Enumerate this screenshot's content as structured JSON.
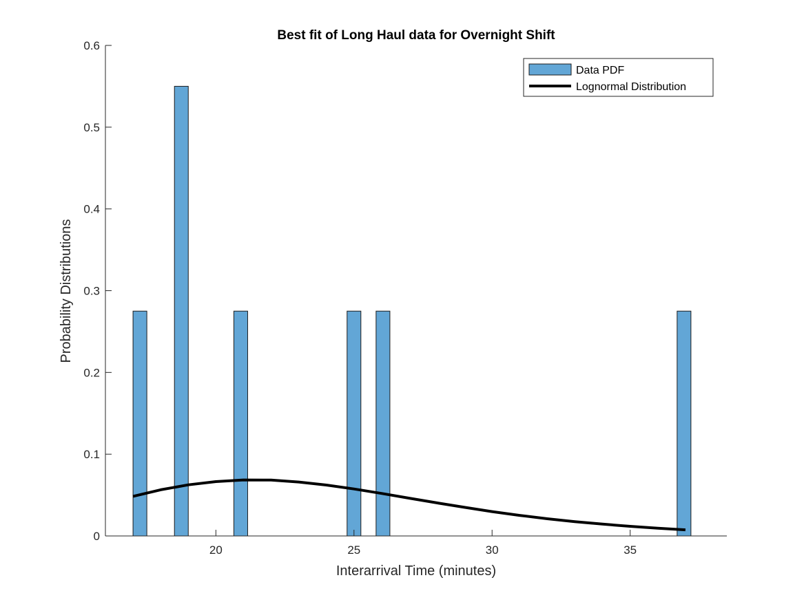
{
  "chart_data": {
    "type": "bar",
    "title": "Best fit of Long Haul data for Overnight Shift",
    "xlabel": "Interarrival Time (minutes)",
    "ylabel": "Probability Distributions",
    "xlim": [
      16.0,
      38.5
    ],
    "ylim": [
      0,
      0.6
    ],
    "xticks": [
      20,
      25,
      30,
      35
    ],
    "yticks": [
      0,
      0.1,
      0.2,
      0.3,
      0.4,
      0.5,
      0.6
    ],
    "ytick_labels": [
      "0",
      "0.1",
      "0.2",
      "0.3",
      "0.4",
      "0.5",
      "0.6"
    ],
    "grid": false,
    "legend_position": "top-right",
    "colors": {
      "bars": "#62a6d6",
      "bar_edge": "#1a1a1a",
      "curve": "#000000",
      "axis": "#262626"
    },
    "series": [
      {
        "name": "Data PDF",
        "kind": "histogram",
        "bin_width": 0.5,
        "bins": [
          {
            "x": 17.25,
            "y": 0.275
          },
          {
            "x": 18.75,
            "y": 0.55
          },
          {
            "x": 20.9,
            "y": 0.275
          },
          {
            "x": 25.0,
            "y": 0.275
          },
          {
            "x": 26.05,
            "y": 0.275
          },
          {
            "x": 36.95,
            "y": 0.275
          }
        ]
      },
      {
        "name": "Lognormal Distribution",
        "kind": "line",
        "points": [
          [
            17.0,
            0.0485
          ],
          [
            18.0,
            0.0565
          ],
          [
            19.0,
            0.0625
          ],
          [
            20.0,
            0.0665
          ],
          [
            21.0,
            0.0685
          ],
          [
            22.0,
            0.0683
          ],
          [
            23.0,
            0.066
          ],
          [
            24.0,
            0.0623
          ],
          [
            25.0,
            0.0575
          ],
          [
            26.0,
            0.052
          ],
          [
            27.0,
            0.0462
          ],
          [
            28.0,
            0.0405
          ],
          [
            29.0,
            0.035
          ],
          [
            30.0,
            0.0298
          ],
          [
            31.0,
            0.0252
          ],
          [
            32.0,
            0.021
          ],
          [
            33.0,
            0.0175
          ],
          [
            34.0,
            0.0145
          ],
          [
            35.0,
            0.0118
          ],
          [
            36.0,
            0.0095
          ],
          [
            37.0,
            0.0075
          ]
        ]
      }
    ]
  }
}
